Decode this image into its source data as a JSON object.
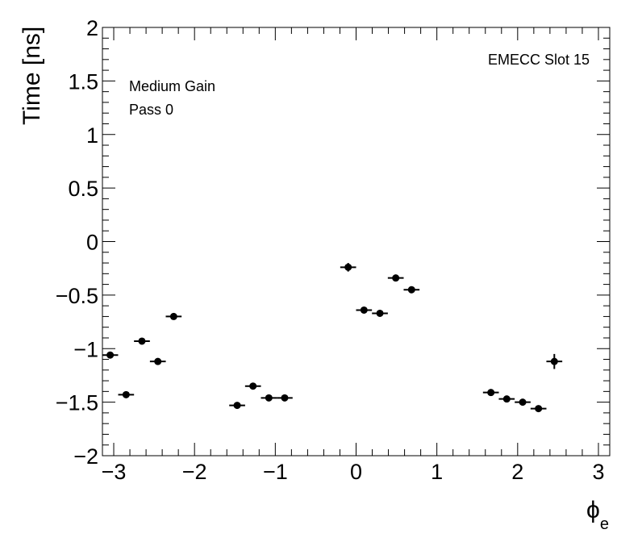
{
  "chart_data": {
    "type": "scatter",
    "xlabel_main": "ϕ",
    "xlabel_sub": "e",
    "ylabel": "Time [ns]",
    "xlim": [
      -3.14,
      3.14
    ],
    "ylim": [
      -2,
      2
    ],
    "x_ticks": [
      -3,
      -2,
      -1,
      0,
      1,
      2,
      3
    ],
    "y_ticks": [
      -2,
      -1.5,
      -1,
      -0.5,
      0,
      0.5,
      1,
      1.5,
      2
    ],
    "x_tick_labels": [
      "−3",
      "−2",
      "−1",
      "0",
      "1",
      "2",
      "3"
    ],
    "y_tick_labels": [
      "−2",
      "−1.5",
      "−1",
      "−0.5",
      "0",
      "0.5",
      "1",
      "1.5",
      "2"
    ],
    "x_bin_half_width": 0.0982,
    "points": [
      {
        "x": -3.044,
        "y": -1.06,
        "yerr": 0.02
      },
      {
        "x": -2.847,
        "y": -1.43,
        "yerr": 0.02
      },
      {
        "x": -2.651,
        "y": -0.93,
        "yerr": 0.02
      },
      {
        "x": -2.454,
        "y": -1.12,
        "yerr": 0.02
      },
      {
        "x": -2.258,
        "y": -0.7,
        "yerr": 0.02
      },
      {
        "x": -1.472,
        "y": -1.53,
        "yerr": 0.02
      },
      {
        "x": -1.276,
        "y": -1.35,
        "yerr": 0.02
      },
      {
        "x": -1.08,
        "y": -1.46,
        "yerr": 0.02
      },
      {
        "x": -0.884,
        "y": -1.46,
        "yerr": 0.02
      },
      {
        "x": -0.098,
        "y": -0.24,
        "yerr": 0.04
      },
      {
        "x": 0.098,
        "y": -0.64,
        "yerr": 0.02
      },
      {
        "x": 0.295,
        "y": -0.67,
        "yerr": 0.02
      },
      {
        "x": 0.491,
        "y": -0.34,
        "yerr": 0.02
      },
      {
        "x": 0.687,
        "y": -0.45,
        "yerr": 0.02
      },
      {
        "x": 1.669,
        "y": -1.41,
        "yerr": 0.02
      },
      {
        "x": 1.865,
        "y": -1.47,
        "yerr": 0.02
      },
      {
        "x": 2.062,
        "y": -1.5,
        "yerr": 0.02
      },
      {
        "x": 2.258,
        "y": -1.56,
        "yerr": 0.02
      },
      {
        "x": 2.454,
        "y": -1.12,
        "yerr": 0.07
      }
    ],
    "annotations": {
      "top_right": "EMECC Slot 15",
      "gain": "Medium Gain",
      "pass": "Pass 0"
    }
  }
}
